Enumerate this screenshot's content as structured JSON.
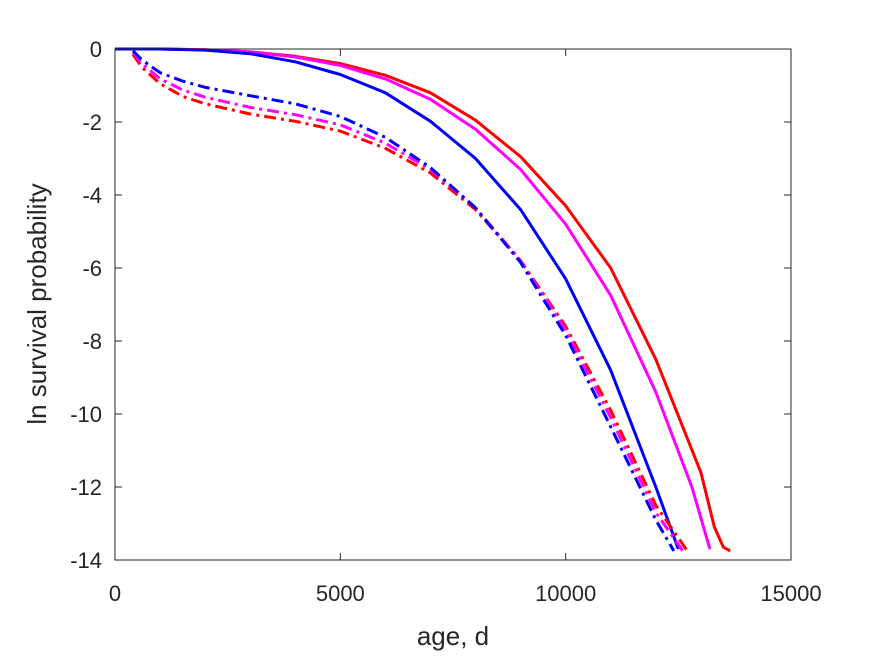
{
  "chart_data": {
    "type": "line",
    "title": "",
    "xlabel": "age, d",
    "ylabel": "ln survival probability",
    "xlim": [
      0,
      15000
    ],
    "ylim": [
      -14,
      0
    ],
    "xticks": [
      0,
      5000,
      10000,
      15000
    ],
    "yticks": [
      -14,
      -12,
      -10,
      -8,
      -6,
      -4,
      -2,
      0
    ],
    "xtick_labels": [
      "0",
      "5000",
      "10000",
      "15000"
    ],
    "ytick_labels": [
      "-14",
      "-12",
      "-10",
      "-8",
      "-6",
      "-4",
      "-2",
      "0"
    ],
    "grid": false,
    "legend": "none",
    "series": [
      {
        "color": "#ff0000",
        "style": "solid",
        "x": [
          0,
          1000,
          2000,
          3000,
          4000,
          5000,
          6000,
          7000,
          8000,
          9000,
          10000,
          11000,
          12000,
          13000,
          13300,
          13500,
          13650
        ],
        "y": [
          0,
          0,
          -0.02,
          -0.08,
          -0.2,
          -0.4,
          -0.72,
          -1.2,
          -1.95,
          -2.95,
          -4.3,
          -6.0,
          -8.5,
          -11.6,
          -13.1,
          -13.65,
          -13.75
        ]
      },
      {
        "color": "#ff00ff",
        "style": "solid",
        "x": [
          0,
          1000,
          2000,
          3000,
          4000,
          5000,
          6000,
          7000,
          8000,
          9000,
          10000,
          11000,
          12000,
          12800,
          13200
        ],
        "y": [
          0,
          0,
          -0.02,
          -0.08,
          -0.22,
          -0.45,
          -0.82,
          -1.38,
          -2.2,
          -3.3,
          -4.8,
          -6.75,
          -9.4,
          -12.0,
          -13.7
        ]
      },
      {
        "color": "#0000ff",
        "style": "solid",
        "x": [
          0,
          1000,
          2000,
          3000,
          4000,
          5000,
          6000,
          7000,
          8000,
          9000,
          10000,
          11000,
          12000,
          12500
        ],
        "y": [
          0,
          0,
          -0.03,
          -0.13,
          -0.35,
          -0.7,
          -1.2,
          -1.98,
          -3.0,
          -4.4,
          -6.3,
          -8.8,
          -12.0,
          -13.7
        ]
      },
      {
        "color": "#ff0000",
        "style": "dashdot",
        "x": [
          400,
          600,
          1000,
          1500,
          2000,
          3000,
          4000,
          5000,
          6000,
          7000,
          8000,
          9000,
          10000,
          11000,
          12000,
          12700
        ],
        "y": [
          -0.15,
          -0.5,
          -0.95,
          -1.3,
          -1.5,
          -1.78,
          -1.98,
          -2.25,
          -2.72,
          -3.4,
          -4.4,
          -5.8,
          -7.6,
          -9.9,
          -12.5,
          -13.75
        ]
      },
      {
        "color": "#ff00ff",
        "style": "dashdot",
        "x": [
          400,
          600,
          1000,
          1500,
          2000,
          3000,
          4000,
          5000,
          6000,
          7000,
          8000,
          9000,
          10000,
          11000,
          12000,
          12600
        ],
        "y": [
          -0.1,
          -0.4,
          -0.82,
          -1.12,
          -1.32,
          -1.6,
          -1.8,
          -2.08,
          -2.58,
          -3.3,
          -4.35,
          -5.8,
          -7.7,
          -10.1,
          -12.7,
          -13.75
        ]
      },
      {
        "color": "#0000ff",
        "style": "dashdot",
        "x": [
          400,
          600,
          1000,
          1500,
          2000,
          3000,
          4000,
          5000,
          6000,
          7000,
          8000,
          9000,
          10000,
          11000,
          12000,
          12400
        ],
        "y": [
          -0.05,
          -0.3,
          -0.65,
          -0.88,
          -1.05,
          -1.28,
          -1.5,
          -1.85,
          -2.42,
          -3.25,
          -4.35,
          -5.85,
          -7.85,
          -10.35,
          -12.9,
          -13.75
        ]
      }
    ]
  }
}
